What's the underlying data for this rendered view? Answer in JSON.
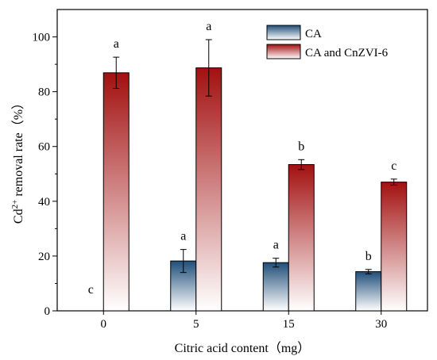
{
  "chart_data": {
    "type": "bar",
    "xlabel": "Citric acid content（mg）",
    "ylabel_main": "Cd",
    "ylabel_sup": "2+",
    "ylabel_rest": " removal rate（%）",
    "categories": [
      "0",
      "5",
      "15",
      "30"
    ],
    "ylim": [
      0,
      110
    ],
    "yticks": [
      0,
      20,
      40,
      60,
      80,
      100
    ],
    "legend_position": "top-right",
    "series": [
      {
        "name": "CA",
        "colors": {
          "top": "#1f4e79",
          "bottom": "#ffffff"
        },
        "values": [
          0,
          18.2,
          17.6,
          14.3
        ],
        "errors": [
          0,
          4.2,
          1.6,
          0.8
        ],
        "letters": [
          "c",
          "a",
          "a",
          "b"
        ]
      },
      {
        "name": "CA and CnZVI-6",
        "colors": {
          "top": "#a31010",
          "bottom": "#ffffff"
        },
        "values": [
          86.9,
          88.7,
          53.4,
          47.0
        ],
        "errors": [
          5.7,
          10.3,
          1.8,
          1.1
        ],
        "letters": [
          "a",
          "a",
          "b",
          "c"
        ]
      }
    ]
  }
}
